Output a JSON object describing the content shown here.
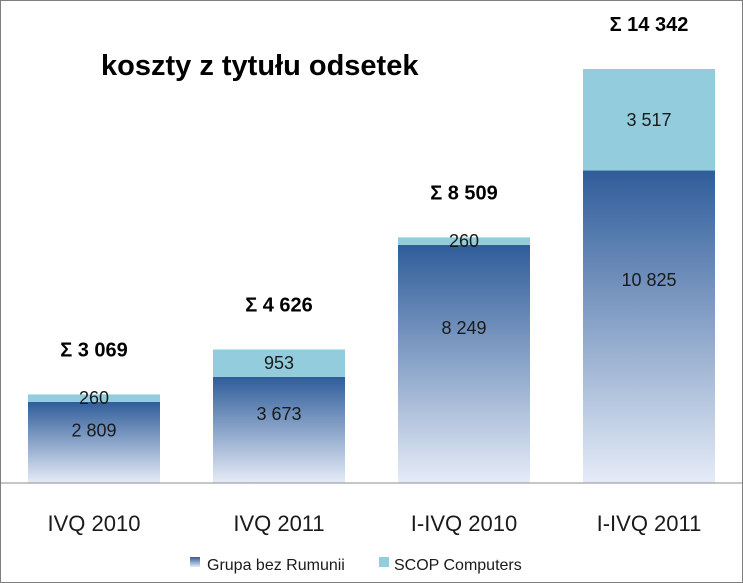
{
  "chart_data": {
    "type": "bar",
    "stacked": true,
    "title": "koszty z tytułu odsetek",
    "categories": [
      "IVQ 2010",
      "IVQ 2011",
      "I-IVQ 2010",
      "I-IVQ 2011"
    ],
    "series": [
      {
        "name": "Grupa bez Rumunii",
        "values": [
          2809,
          3673,
          8249,
          10825
        ],
        "labels": [
          "2 809",
          "3 673",
          "8 249",
          "10 825"
        ],
        "color_top": "#2f5d9a",
        "color_bottom": "#e6ecf8"
      },
      {
        "name": "SCOP Computers",
        "values": [
          260,
          953,
          260,
          3517
        ],
        "labels": [
          "260",
          "953",
          "260",
          "3 517"
        ],
        "color": "#93cddd"
      }
    ],
    "totals": [
      "Σ 3 069",
      "Σ 4 626",
      "Σ 8 509",
      "Σ 14 342"
    ],
    "ylim": [
      0,
      15000
    ],
    "grid": false,
    "legend": "bottom"
  }
}
